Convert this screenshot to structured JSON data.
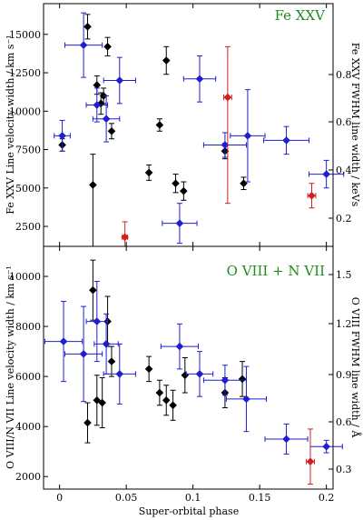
{
  "colors": {
    "black": "#000000",
    "blue": "#1f1fd0",
    "red": "#d01f1f",
    "title_green": "#1e8c1e"
  },
  "xaxis": {
    "label": "Super-orbital phase",
    "lim": [
      -0.012,
      0.205
    ],
    "ticks": [
      "0",
      "0.05",
      "0.1",
      "0.15",
      "0.2"
    ]
  },
  "chart_data": [
    {
      "type": "scatter",
      "title": "Fe XXV",
      "ylabel_left": "Fe XXV Line velocity width / km s⁻¹",
      "ylabel_right": "Fe XXV FWHM line width / keVs",
      "ylim_left": [
        1200,
        17000
      ],
      "yticks_left": [
        "2500",
        "5000",
        "7500",
        "10000",
        "12500",
        "15000"
      ],
      "yticks_right": [
        "0.2",
        "0.4",
        "0.6",
        "0.8"
      ],
      "series": [
        {
          "color": "black",
          "points": [
            {
              "x": 0.002,
              "y": 7800,
              "xerr": 0,
              "yerr": 400
            },
            {
              "x": 0.021,
              "y": 15500,
              "xerr": 0,
              "yerr": 800
            },
            {
              "x": 0.025,
              "y": 5200,
              "xerr": 0,
              "yerr": 2000,
              "yerr_lo": 4000
            },
            {
              "x": 0.028,
              "y": 11700,
              "xerr": 0,
              "yerr": 600
            },
            {
              "x": 0.031,
              "y": 10500,
              "xerr": 0,
              "yerr": 700
            },
            {
              "x": 0.033,
              "y": 11000,
              "xerr": 0,
              "yerr": 500
            },
            {
              "x": 0.036,
              "y": 14200,
              "xerr": 0,
              "yerr": 600
            },
            {
              "x": 0.039,
              "y": 8700,
              "xerr": 0,
              "yerr": 500
            },
            {
              "x": 0.067,
              "y": 6000,
              "xerr": 0,
              "yerr": 500
            },
            {
              "x": 0.075,
              "y": 9100,
              "xerr": 0,
              "yerr": 400
            },
            {
              "x": 0.08,
              "y": 13300,
              "xerr": 0,
              "yerr": 900
            },
            {
              "x": 0.087,
              "y": 5300,
              "xerr": 0,
              "yerr": 600
            },
            {
              "x": 0.093,
              "y": 4800,
              "xerr": 0,
              "yerr": 600
            },
            {
              "x": 0.124,
              "y": 7400,
              "xerr": 0,
              "yerr": 500
            },
            {
              "x": 0.138,
              "y": 5300,
              "xerr": 0,
              "yerr": 400
            }
          ]
        },
        {
          "color": "blue",
          "points": [
            {
              "x": 0.002,
              "y": 8400,
              "xerr": 0.006,
              "yerr": 1000
            },
            {
              "x": 0.018,
              "y": 14300,
              "xerr": 0.014,
              "yerr": 2100
            },
            {
              "x": 0.028,
              "y": 10400,
              "xerr": 0.008,
              "yerr": 1100
            },
            {
              "x": 0.035,
              "y": 9500,
              "xerr": 0.01,
              "yerr": 1500
            },
            {
              "x": 0.045,
              "y": 12000,
              "xerr": 0.012,
              "yerr": 1500
            },
            {
              "x": 0.09,
              "y": 2700,
              "xerr": 0.013,
              "yerr": 1300
            },
            {
              "x": 0.105,
              "y": 12100,
              "xerr": 0.012,
              "yerr": 1500
            },
            {
              "x": 0.124,
              "y": 7800,
              "xerr": 0.016,
              "yerr": 800
            },
            {
              "x": 0.141,
              "y": 8400,
              "xerr": 0.013,
              "yerr": 3000
            },
            {
              "x": 0.17,
              "y": 8100,
              "xerr": 0.017,
              "yerr": 900
            },
            {
              "x": 0.2,
              "y": 5900,
              "xerr": 0.013,
              "yerr": 900
            }
          ]
        },
        {
          "color": "red",
          "points": [
            {
              "x": 0.049,
              "y": 1800,
              "xerr": 0.002,
              "yerr": 1000
            },
            {
              "x": 0.126,
              "y": 10900,
              "xerr": 0.003,
              "yerr": 3300,
              "yerr_lo": 6900
            },
            {
              "x": 0.189,
              "y": 4500,
              "xerr": 0.003,
              "yerr": 800
            }
          ]
        }
      ]
    },
    {
      "type": "scatter",
      "title": "O VIII + N VII",
      "ylabel_left": "O VIII/N VII Line velocity width / km s⁻¹",
      "ylabel_right": "O VIII FWHM line width / Å",
      "ylim_left": [
        1500,
        11200
      ],
      "yticks_left": [
        "2000",
        "4000",
        "6000",
        "8000",
        "10000"
      ],
      "yticks_right": [
        "0.3",
        "0.6",
        "0.9",
        "1.2",
        "1.5"
      ],
      "series": [
        {
          "color": "black",
          "points": [
            {
              "x": 0.021,
              "y": 4150,
              "xerr": 0,
              "yerr": 800
            },
            {
              "x": 0.025,
              "y": 9450,
              "xerr": 0,
              "yerr": 1200
            },
            {
              "x": 0.028,
              "y": 5050,
              "xerr": 0,
              "yerr": 1000
            },
            {
              "x": 0.032,
              "y": 4950,
              "xerr": 0,
              "yerr": 1000
            },
            {
              "x": 0.036,
              "y": 8200,
              "xerr": 0,
              "yerr": 1000
            },
            {
              "x": 0.039,
              "y": 6600,
              "xerr": 0,
              "yerr": 600
            },
            {
              "x": 0.067,
              "y": 6300,
              "xerr": 0,
              "yerr": 500
            },
            {
              "x": 0.075,
              "y": 5350,
              "xerr": 0,
              "yerr": 500
            },
            {
              "x": 0.08,
              "y": 5050,
              "xerr": 0,
              "yerr": 600
            },
            {
              "x": 0.085,
              "y": 4850,
              "xerr": 0,
              "yerr": 600
            },
            {
              "x": 0.094,
              "y": 6050,
              "xerr": 0,
              "yerr": 700
            },
            {
              "x": 0.124,
              "y": 5350,
              "xerr": 0,
              "yerr": 600
            },
            {
              "x": 0.137,
              "y": 5900,
              "xerr": 0,
              "yerr": 700
            }
          ]
        },
        {
          "color": "blue",
          "points": [
            {
              "x": 0.003,
              "y": 7400,
              "xerr": 0.014,
              "yerr": 1600
            },
            {
              "x": 0.018,
              "y": 6900,
              "xerr": 0.014,
              "yerr": 1900
            },
            {
              "x": 0.028,
              "y": 8200,
              "xerr": 0.008,
              "yerr": 1600
            },
            {
              "x": 0.035,
              "y": 7300,
              "xerr": 0.009,
              "yerr": 1200
            },
            {
              "x": 0.045,
              "y": 6100,
              "xerr": 0.012,
              "yerr": 1200
            },
            {
              "x": 0.09,
              "y": 7200,
              "xerr": 0.014,
              "yerr": 900
            },
            {
              "x": 0.105,
              "y": 6100,
              "xerr": 0.01,
              "yerr": 900
            },
            {
              "x": 0.124,
              "y": 5850,
              "xerr": 0.016,
              "yerr": 600
            },
            {
              "x": 0.14,
              "y": 5100,
              "xerr": 0.015,
              "yerr": 1300
            },
            {
              "x": 0.17,
              "y": 3500,
              "xerr": 0.016,
              "yerr": 600
            },
            {
              "x": 0.2,
              "y": 3200,
              "xerr": 0.012,
              "yerr": 250
            }
          ]
        },
        {
          "color": "red",
          "points": [
            {
              "x": 0.188,
              "y": 2600,
              "xerr": 0.003,
              "yerr": 1300,
              "yerr_lo": 900
            }
          ]
        }
      ]
    }
  ]
}
